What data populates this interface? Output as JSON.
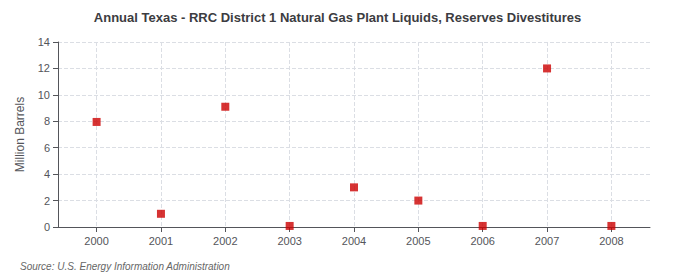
{
  "chart_data": {
    "type": "scatter",
    "title": "Annual Texas - RRC District 1 Natural Gas Plant Liquids, Reserves Divestitures",
    "ylabel": "Million Barrels",
    "annotations": [
      "Source: U.S. Energy Information Administration"
    ],
    "x": [
      2000,
      2001,
      2002,
      2003,
      2004,
      2005,
      2006,
      2007,
      2008
    ],
    "values": [
      7.95,
      1.0,
      9.1,
      0.08,
      3.0,
      2.0,
      0.08,
      12.0,
      0.08
    ],
    "color": "#cc0000",
    "marker": "square",
    "xlim": [
      1999.4,
      2008.6
    ],
    "xticks": [
      2000,
      2001,
      2002,
      2003,
      2004,
      2005,
      2006,
      2007,
      2008
    ],
    "ylim": [
      0,
      14
    ],
    "yticks": [
      0,
      2,
      4,
      6,
      8,
      10,
      12,
      14
    ],
    "grid": true
  }
}
